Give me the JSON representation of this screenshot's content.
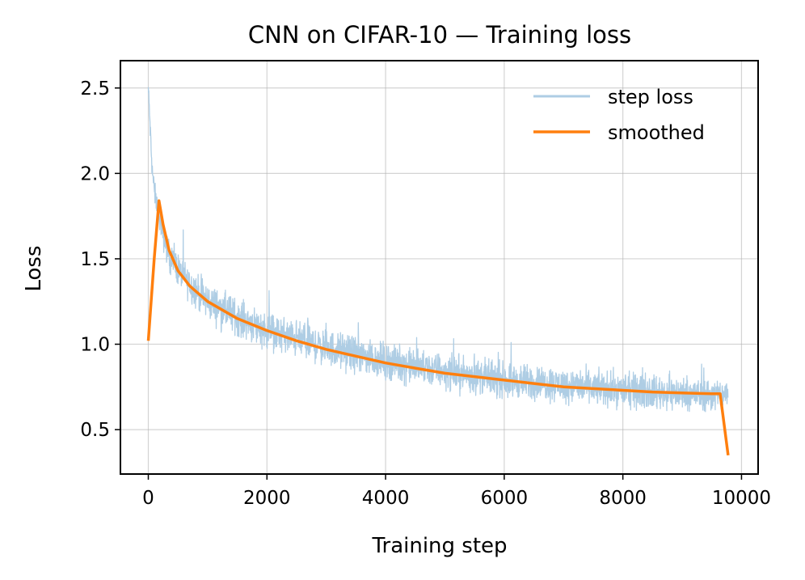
{
  "chart_data": {
    "type": "line",
    "title": "CNN on CIFAR-10 — Training loss",
    "xlabel": "Training step",
    "ylabel": "Loss",
    "xlim": [
      -470,
      10280
    ],
    "ylim": [
      0.24,
      2.66
    ],
    "xticks": [
      0,
      2000,
      4000,
      6000,
      8000,
      10000
    ],
    "yticks": [
      0.5,
      1.0,
      1.5,
      2.0,
      2.5
    ],
    "xtick_labels": [
      "0",
      "2000",
      "4000",
      "6000",
      "8000",
      "10000"
    ],
    "ytick_labels": [
      "0.5",
      "1.0",
      "1.5",
      "2.0",
      "2.5"
    ],
    "grid": true,
    "legend_position": "top-right",
    "series": [
      {
        "name": "step loss",
        "color": "#aecde4",
        "total_steps": 9775,
        "band_centre": {
          "x": [
            0,
            20,
            60,
            100,
            150,
            200,
            260,
            350,
            500,
            700,
            1000,
            1500,
            2000,
            3000,
            4000,
            5000,
            6000,
            7000,
            8000,
            9000,
            9700,
            9775
          ],
          "y": [
            2.5,
            2.35,
            2.05,
            1.9,
            1.8,
            1.72,
            1.62,
            1.52,
            1.44,
            1.35,
            1.25,
            1.16,
            1.08,
            0.98,
            0.9,
            0.84,
            0.79,
            0.76,
            0.73,
            0.71,
            0.7,
            0.71
          ]
        },
        "band_halfwidth": {
          "x": [
            0,
            300,
            1000,
            9775
          ],
          "y": [
            0.06,
            0.09,
            0.11,
            0.1
          ]
        }
      },
      {
        "name": "smoothed",
        "color": "#ff7f0e",
        "x": [
          0,
          100,
          180,
          250,
          350,
          500,
          700,
          1000,
          1500,
          2000,
          2500,
          3000,
          3500,
          4000,
          4500,
          5000,
          5500,
          6000,
          6500,
          7000,
          7500,
          8000,
          8500,
          9000,
          9500,
          9640,
          9775
        ],
        "y": [
          1.02,
          1.5,
          1.84,
          1.7,
          1.55,
          1.43,
          1.34,
          1.25,
          1.15,
          1.08,
          1.02,
          0.97,
          0.93,
          0.89,
          0.86,
          0.83,
          0.81,
          0.79,
          0.77,
          0.75,
          0.74,
          0.73,
          0.72,
          0.715,
          0.71,
          0.71,
          0.35
        ]
      }
    ]
  }
}
